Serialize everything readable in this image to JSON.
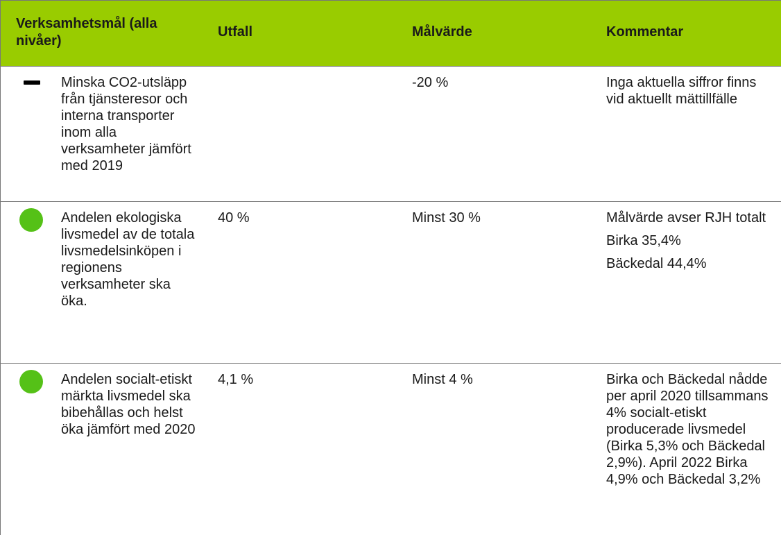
{
  "table": {
    "header": [
      "Verksamhetsmål (alla nivåer)",
      "Utfall",
      "Målvärde",
      "Kommentar"
    ],
    "rows": [
      {
        "goal": "Minska CO2-utsläpp från tjänsteresor och interna transporter inom alla verksamheter jämfört med 2019",
        "target": "-20 %",
        "comment": [
          "Inga aktuella siffror finns vid aktuellt mättillfälle"
        ]
      },
      {
        "goal": "Andelen ekologiska livsmedel av de totala livsmedelsinköpen i regionens verksamheter ska öka.",
        "result": "40 %",
        "target": "Minst 30 %",
        "comment": [
          "Målvärde avser RJH totalt",
          "Birka 35,4%",
          "Bäckedal 44,4%"
        ]
      },
      {
        "goal": "Andelen socialt-etiskt märkta livsmedel ska bibehållas och helst öka jämfört med 2020",
        "result": "4,1 %",
        "target": "Minst 4 %",
        "comment": [
          "Birka och Bäckedal nådde per april 2020 tillsammans 4% socialt-etiskt producerade livsmedel (Birka 5,3% och Bäckedal 2,9%). April 2022 Birka 4,9% och Bäckedal 3,2%"
        ]
      }
    ]
  }
}
